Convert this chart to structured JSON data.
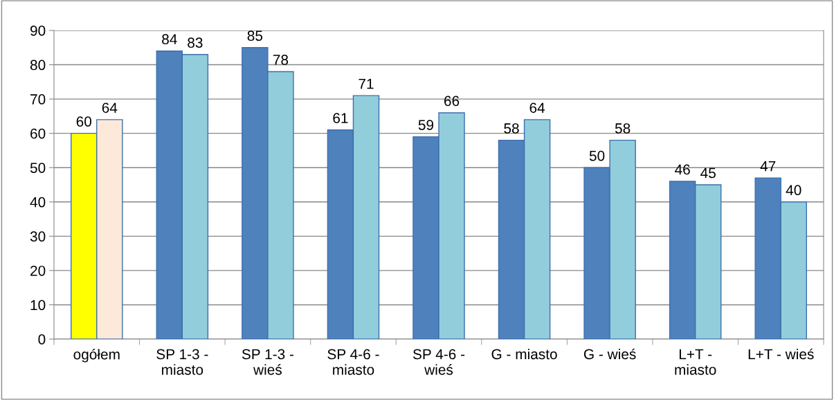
{
  "chart_data": {
    "type": "bar",
    "categories": [
      "ogółem",
      "SP 1-3 -\nmiasto",
      "SP 1-3 -\nwieś",
      "SP 4-6 -\nmiasto",
      "SP 4-6 -\nwieś",
      "G - miasto",
      "G - wieś",
      "L+T -\nmiasto",
      "L+T - wieś"
    ],
    "series": [
      {
        "colors": [
          "#ffff00",
          "#4f81bd",
          "#4f81bd",
          "#4f81bd",
          "#4f81bd",
          "#4f81bd",
          "#4f81bd",
          "#4f81bd",
          "#4f81bd"
        ],
        "values": [
          60,
          84,
          85,
          61,
          59,
          58,
          50,
          46,
          47
        ]
      },
      {
        "colors": [
          "#fde9d9",
          "#92cddc",
          "#92cddc",
          "#92cddc",
          "#92cddc",
          "#92cddc",
          "#92cddc",
          "#92cddc",
          "#92cddc"
        ],
        "values": [
          64,
          83,
          78,
          71,
          66,
          64,
          58,
          45,
          40
        ]
      }
    ],
    "ylim": [
      0,
      90
    ],
    "yticks": [
      0,
      10,
      20,
      30,
      40,
      50,
      60,
      70,
      80,
      90
    ],
    "grid": "y",
    "data_labels": true
  }
}
